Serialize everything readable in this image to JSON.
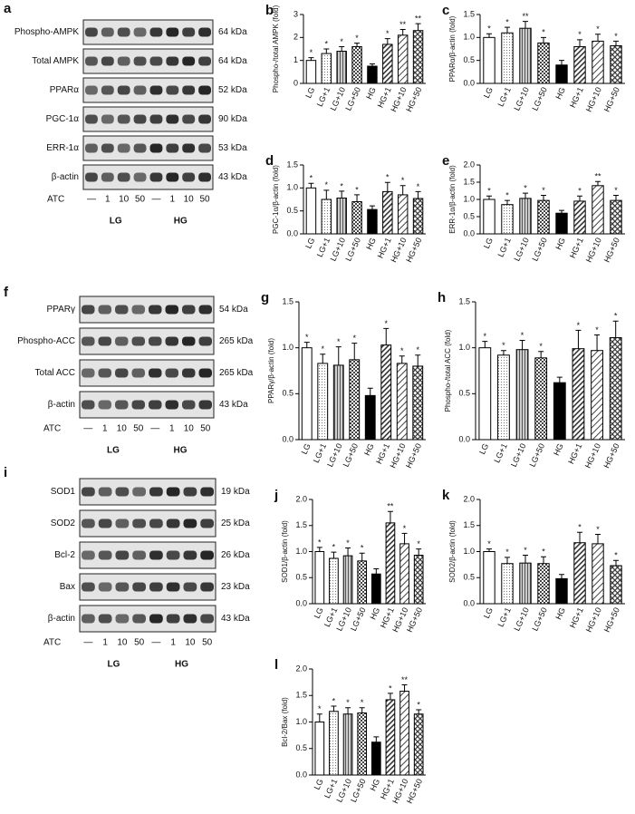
{
  "blots": [
    {
      "panel": "a",
      "rows": [
        {
          "protein": "Phospho-AMPK",
          "size": "64 kDa"
        },
        {
          "protein": "Total AMPK",
          "size": "64 kDa"
        },
        {
          "protein": "PPARα",
          "size": "52 kDa"
        },
        {
          "protein": "PGC-1α",
          "size": "90 kDa"
        },
        {
          "protein": "ERR-1α",
          "size": "53 kDa"
        },
        {
          "protein": "β-actin",
          "size": "43 kDa"
        }
      ],
      "treatment": "ATC",
      "doses": [
        "—",
        "1",
        "10",
        "50",
        "—",
        "1",
        "10",
        "50"
      ],
      "groups": [
        "LG",
        "HG"
      ]
    },
    {
      "panel": "f",
      "rows": [
        {
          "protein": "PPARγ",
          "size": "54 kDa"
        },
        {
          "protein": "Phospho-ACC",
          "size": "265 kDa"
        },
        {
          "protein": "Total ACC",
          "size": "265 kDa"
        },
        {
          "protein": "β-actin",
          "size": "43 kDa"
        }
      ],
      "treatment": "ATC",
      "doses": [
        "—",
        "1",
        "10",
        "50",
        "—",
        "1",
        "10",
        "50"
      ],
      "groups": [
        "LG",
        "HG"
      ]
    },
    {
      "panel": "i",
      "rows": [
        {
          "protein": "SOD1",
          "size": "19 kDa"
        },
        {
          "protein": "SOD2",
          "size": "25 kDa"
        },
        {
          "protein": "Bcl-2",
          "size": "26 kDa"
        },
        {
          "protein": "Bax",
          "size": "23 kDa"
        },
        {
          "protein": "β-actin",
          "size": "43 kDa"
        }
      ],
      "treatment": "ATC",
      "doses": [
        "—",
        "1",
        "10",
        "50",
        "—",
        "1",
        "10",
        "50"
      ],
      "groups": [
        "LG",
        "HG"
      ]
    }
  ],
  "chart_data": [
    {
      "type": "bar",
      "panel": "b",
      "ylabel": "Phospho-/total AMPK (fold)",
      "categories": [
        "LG",
        "LG+1",
        "LG+10",
        "LG+50",
        "HG",
        "HG+1",
        "HG+10",
        "HG+50"
      ],
      "values": [
        1.0,
        1.3,
        1.4,
        1.6,
        0.75,
        1.7,
        2.1,
        2.3
      ],
      "errors": [
        0.12,
        0.2,
        0.2,
        0.15,
        0.1,
        0.25,
        0.25,
        0.3
      ],
      "annotations": [
        "*",
        "*",
        "*",
        "*",
        null,
        "*",
        "**",
        "**"
      ],
      "ylim": [
        0,
        3
      ],
      "yticks": [
        0,
        1,
        2,
        3
      ]
    },
    {
      "type": "bar",
      "panel": "c",
      "ylabel": "PPARα/β-actin (fold)",
      "categories": [
        "LG",
        "LG+1",
        "LG+10",
        "LG+50",
        "HG",
        "HG+1",
        "HG+10",
        "HG+50"
      ],
      "values": [
        1.0,
        1.1,
        1.2,
        0.88,
        0.4,
        0.8,
        0.92,
        0.82
      ],
      "errors": [
        0.08,
        0.12,
        0.15,
        0.12,
        0.1,
        0.15,
        0.15,
        0.1
      ],
      "annotations": [
        "*",
        "*",
        "**",
        "*",
        null,
        "*",
        "*",
        "*"
      ],
      "ylim": [
        0,
        1.5
      ],
      "yticks": [
        {
          "value": 0,
          "label": "0.0"
        },
        0.5,
        {
          "value": 1,
          "label": "1.0"
        },
        1.5
      ]
    },
    {
      "type": "bar",
      "panel": "d",
      "ylabel": "PGC-1α/β-actin (fold)",
      "categories": [
        "LG",
        "LG+1",
        "LG+10",
        "LG+50",
        "HG",
        "HG+1",
        "HG+10",
        "HG+50"
      ],
      "values": [
        1.0,
        0.75,
        0.78,
        0.7,
        0.53,
        0.92,
        0.85,
        0.77
      ],
      "errors": [
        0.1,
        0.2,
        0.15,
        0.15,
        0.08,
        0.2,
        0.2,
        0.15
      ],
      "annotations": [
        "*",
        "*",
        "*",
        "*",
        null,
        "*",
        "*",
        "*"
      ],
      "ylim": [
        0,
        1.5
      ],
      "yticks": [
        {
          "value": 0,
          "label": "0.0"
        },
        0.5,
        {
          "value": 1,
          "label": "1.0"
        },
        1.5
      ]
    },
    {
      "type": "bar",
      "panel": "e",
      "ylabel": "ERR-1α/β-actin (fold)",
      "categories": [
        "LG",
        "LG+1",
        "LG+10",
        "LG+50",
        "HG",
        "HG+1",
        "HG+10",
        "HG+50"
      ],
      "values": [
        1.0,
        0.85,
        1.03,
        0.97,
        0.6,
        0.95,
        1.4,
        0.97
      ],
      "errors": [
        0.1,
        0.12,
        0.15,
        0.15,
        0.08,
        0.15,
        0.12,
        0.15
      ],
      "annotations": [
        "*",
        "*",
        "*",
        "*",
        null,
        "*",
        "**",
        "*"
      ],
      "ylim": [
        0,
        2
      ],
      "yticks": [
        {
          "value": 0,
          "label": "0.0"
        },
        0.5,
        {
          "value": 1,
          "label": "1.0"
        },
        1.5,
        {
          "value": 2,
          "label": "2.0"
        }
      ]
    },
    {
      "type": "bar",
      "panel": "g",
      "ylabel": "PPARγ/β-actin (fold)",
      "categories": [
        "LG",
        "LG+1",
        "LG+10",
        "LG+50",
        "HG",
        "HG+1",
        "HG+10",
        "HG+50"
      ],
      "values": [
        1.0,
        0.83,
        0.81,
        0.87,
        0.48,
        1.03,
        0.83,
        0.8
      ],
      "errors": [
        0.06,
        0.1,
        0.2,
        0.18,
        0.08,
        0.18,
        0.08,
        0.12
      ],
      "annotations": [
        "*",
        "*",
        "*",
        "*",
        null,
        "*",
        "*",
        "*"
      ],
      "ylim": [
        0,
        1.5
      ],
      "yticks": [
        {
          "value": 0,
          "label": "0.0"
        },
        0.5,
        {
          "value": 1,
          "label": "1.0"
        },
        1.5
      ]
    },
    {
      "type": "bar",
      "panel": "h",
      "ylabel": "Phospho-/total ACC (fold)",
      "categories": [
        "LG",
        "LG+1",
        "LG+10",
        "LG+50",
        "HG",
        "HG+1",
        "HG+10",
        "HG+50"
      ],
      "values": [
        1.0,
        0.92,
        0.98,
        0.89,
        0.62,
        0.99,
        0.97,
        1.11
      ],
      "errors": [
        0.07,
        0.05,
        0.1,
        0.07,
        0.06,
        0.2,
        0.17,
        0.18
      ],
      "annotations": [
        "*",
        "*",
        "*",
        "*",
        null,
        "*",
        "*",
        "*"
      ],
      "ylim": [
        0,
        1.5
      ],
      "yticks": [
        {
          "value": 0,
          "label": "0.0"
        },
        0.5,
        {
          "value": 1,
          "label": "1.0"
        },
        1.5
      ]
    },
    {
      "type": "bar",
      "panel": "j",
      "ylabel": "SOD1/β-actin (fold)",
      "categories": [
        "LG",
        "LG+1",
        "LG+10",
        "LG+50",
        "HG",
        "HG+1",
        "HG+10",
        "HG+50"
      ],
      "values": [
        1.0,
        0.87,
        0.92,
        0.82,
        0.57,
        1.55,
        1.15,
        0.93
      ],
      "errors": [
        0.08,
        0.12,
        0.15,
        0.15,
        0.1,
        0.22,
        0.2,
        0.12
      ],
      "annotations": [
        "*",
        "*",
        "*",
        "*",
        null,
        "**",
        "*",
        "*"
      ],
      "ylim": [
        0,
        2
      ],
      "yticks": [
        {
          "value": 0,
          "label": "0.0"
        },
        0.5,
        {
          "value": 1,
          "label": "1.0"
        },
        1.5,
        {
          "value": 2,
          "label": "2.0"
        }
      ]
    },
    {
      "type": "bar",
      "panel": "k",
      "ylabel": "SOD2/β-actin (fold)",
      "categories": [
        "LG",
        "LG+1",
        "LG+10",
        "LG+50",
        "HG",
        "HG+1",
        "HG+10",
        "HG+50"
      ],
      "values": [
        1.0,
        0.77,
        0.78,
        0.77,
        0.48,
        1.17,
        1.15,
        0.73
      ],
      "errors": [
        0.05,
        0.12,
        0.15,
        0.13,
        0.08,
        0.2,
        0.18,
        0.1
      ],
      "annotations": [
        "*",
        "*",
        "*",
        "*",
        null,
        "*",
        "*",
        "*"
      ],
      "ylim": [
        0,
        2
      ],
      "yticks": [
        {
          "value": 0,
          "label": "0.0"
        },
        0.5,
        {
          "value": 1,
          "label": "1.0"
        },
        1.5,
        {
          "value": 2,
          "label": "2.0"
        }
      ]
    },
    {
      "type": "bar",
      "panel": "l",
      "ylabel": "Bcl-2/Bax (fold)",
      "categories": [
        "LG",
        "LG+1",
        "LG+10",
        "LG+50",
        "HG",
        "HG+1",
        "HG+10",
        "HG+50"
      ],
      "values": [
        1.0,
        1.2,
        1.15,
        1.17,
        0.62,
        1.42,
        1.58,
        1.15
      ],
      "errors": [
        0.15,
        0.1,
        0.12,
        0.1,
        0.1,
        0.12,
        0.12,
        0.08
      ],
      "annotations": [
        "*",
        "*",
        "*",
        "*",
        null,
        "*",
        "**",
        "*"
      ],
      "ylim": [
        0,
        2
      ],
      "yticks": [
        {
          "value": 0,
          "label": "0.0"
        },
        0.5,
        {
          "value": 1,
          "label": "1.0"
        },
        1.5,
        {
          "value": 2,
          "label": "2.0"
        }
      ]
    }
  ]
}
